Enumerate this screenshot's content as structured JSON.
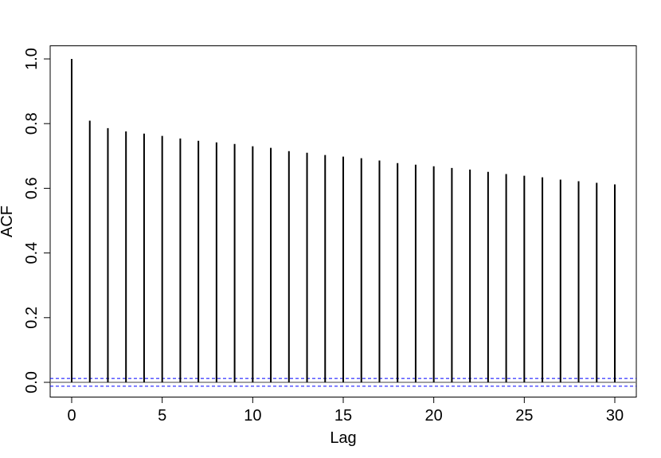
{
  "chart_data": {
    "type": "bar",
    "subtype": "acf-stem",
    "title": "",
    "xlabel": "Lag",
    "ylabel": "ACF",
    "xlim": [
      -1.2,
      31.2
    ],
    "ylim": [
      -0.04,
      1.0
    ],
    "x_ticks": [
      0,
      5,
      10,
      15,
      20,
      25,
      30
    ],
    "x_tick_labels": [
      "0",
      "5",
      "10",
      "15",
      "20",
      "25",
      "30"
    ],
    "y_ticks": [
      0.0,
      0.2,
      0.4,
      0.6,
      0.8,
      1.0
    ],
    "y_tick_labels": [
      "0.0",
      "0.2",
      "0.4",
      "0.6",
      "0.8",
      "1.0"
    ],
    "grid": false,
    "x": [
      0,
      1,
      2,
      3,
      4,
      5,
      6,
      7,
      8,
      9,
      10,
      11,
      12,
      13,
      14,
      15,
      16,
      17,
      18,
      19,
      20,
      21,
      22,
      23,
      24,
      25,
      26,
      27,
      28,
      29,
      30
    ],
    "values": [
      1.0,
      0.809,
      0.786,
      0.776,
      0.769,
      0.762,
      0.754,
      0.747,
      0.742,
      0.737,
      0.73,
      0.725,
      0.715,
      0.71,
      0.703,
      0.698,
      0.693,
      0.686,
      0.678,
      0.673,
      0.668,
      0.663,
      0.658,
      0.651,
      0.644,
      0.639,
      0.634,
      0.627,
      0.622,
      0.617,
      0.612
    ],
    "confidence_bound": 0.012,
    "colors": {
      "bars": "#000000",
      "zero_line": "#808080",
      "confidence": "#0000ff"
    }
  }
}
